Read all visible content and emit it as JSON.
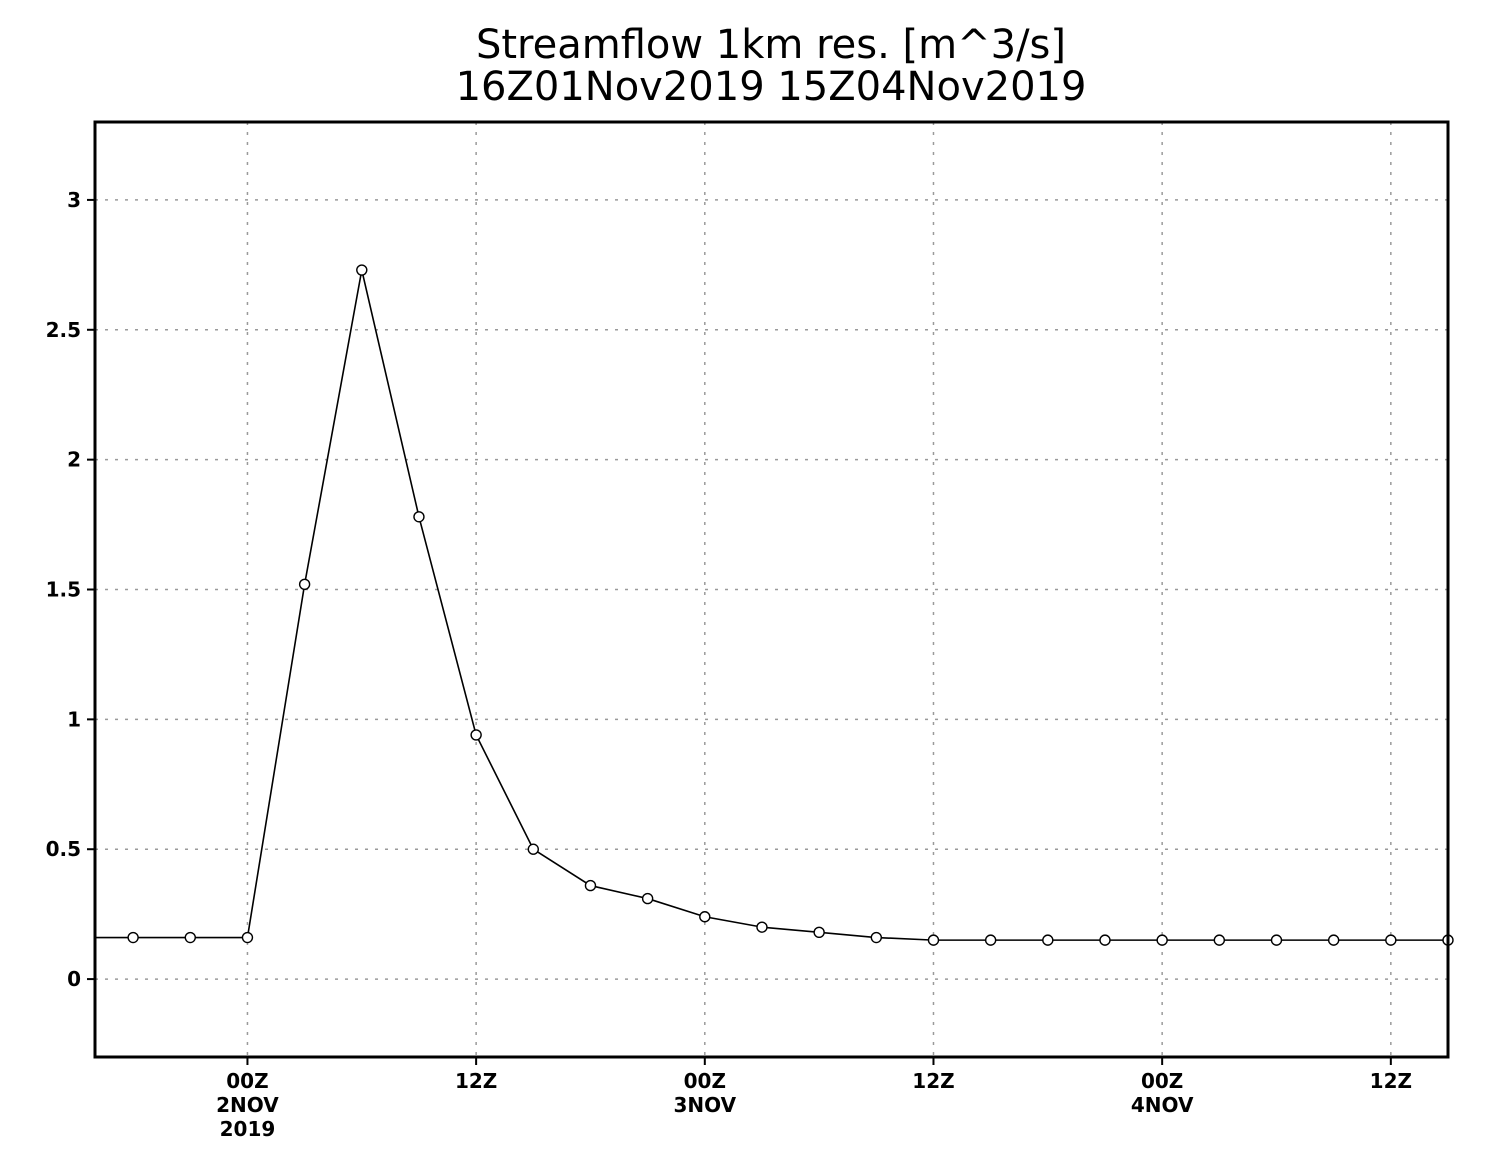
{
  "chart_data": {
    "type": "line",
    "title": "Streamflow 1km res. [m^3/s]",
    "subtitle": "16Z01Nov2019 15Z04Nov2019",
    "xlabel": "",
    "ylabel": "",
    "xlim": [
      "2019-11-01T16:00Z",
      "2019-11-04T15:00Z"
    ],
    "ylim": [
      -0.3,
      3.3
    ],
    "grid": true,
    "legend": "none",
    "y_ticks": [
      0,
      0.5,
      1,
      1.5,
      2,
      2.5,
      3
    ],
    "y_tick_labels": [
      "0",
      "0.5",
      "1",
      "1.5",
      "2",
      "2.5",
      "3"
    ],
    "x_ticks": [
      {
        "at": "2019-11-02T00:00Z",
        "lines": [
          "00Z",
          "2NOV",
          "2019"
        ]
      },
      {
        "at": "2019-11-02T12:00Z",
        "lines": [
          "12Z"
        ]
      },
      {
        "at": "2019-11-03T00:00Z",
        "lines": [
          "00Z",
          "3NOV"
        ]
      },
      {
        "at": "2019-11-03T12:00Z",
        "lines": [
          "12Z"
        ]
      },
      {
        "at": "2019-11-04T00:00Z",
        "lines": [
          "00Z",
          "4NOV"
        ]
      },
      {
        "at": "2019-11-04T12:00Z",
        "lines": [
          "12Z"
        ]
      }
    ],
    "x": [
      "2019-11-01T18:00Z",
      "2019-11-01T21:00Z",
      "2019-11-02T00:00Z",
      "2019-11-02T03:00Z",
      "2019-11-02T06:00Z",
      "2019-11-02T09:00Z",
      "2019-11-02T12:00Z",
      "2019-11-02T15:00Z",
      "2019-11-02T18:00Z",
      "2019-11-02T21:00Z",
      "2019-11-03T00:00Z",
      "2019-11-03T03:00Z",
      "2019-11-03T06:00Z",
      "2019-11-03T09:00Z",
      "2019-11-03T12:00Z",
      "2019-11-03T15:00Z",
      "2019-11-03T18:00Z",
      "2019-11-03T21:00Z",
      "2019-11-04T00:00Z",
      "2019-11-04T03:00Z",
      "2019-11-04T06:00Z",
      "2019-11-04T09:00Z",
      "2019-11-04T12:00Z",
      "2019-11-04T15:00Z"
    ],
    "series": [
      {
        "values": [
          0.16,
          0.16,
          0.16,
          1.52,
          2.73,
          1.78,
          0.94,
          0.5,
          0.36,
          0.31,
          0.24,
          0.2,
          0.18,
          0.16,
          0.15,
          0.15,
          0.15,
          0.15,
          0.15,
          0.15,
          0.15,
          0.15,
          0.15,
          0.15
        ],
        "left_edge_value": 0.16
      }
    ]
  }
}
